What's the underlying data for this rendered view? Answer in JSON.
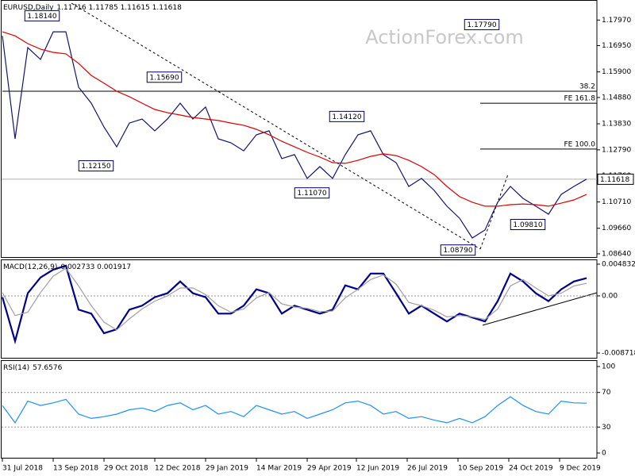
{
  "chart_data": [
    {
      "type": "line",
      "title": "EURUSD,Daily",
      "subtitle": "1.11716 1.11785 1.11615 1.11618",
      "watermark": "ActionForex.com",
      "x": [
        0,
        8,
        16,
        24,
        32,
        40,
        48,
        56,
        64,
        72,
        80,
        88,
        96,
        104,
        112,
        120,
        128,
        136,
        144,
        152,
        160,
        168,
        176,
        184,
        192,
        200,
        208,
        216,
        224,
        232,
        240,
        248,
        256,
        264,
        272,
        280,
        288,
        296,
        304,
        312,
        320,
        328,
        336,
        344,
        352,
        360,
        368
      ],
      "xlim": [
        0,
        374
      ],
      "xticks": [
        {
          "value": 0,
          "label": "31 Jul 2018"
        },
        {
          "value": 32,
          "label": "13 Sep 2018"
        },
        {
          "value": 64,
          "label": "29 Oct 2018"
        },
        {
          "value": 96,
          "label": "12 Dec 2018"
        },
        {
          "value": 128,
          "label": "29 Jan 2019"
        },
        {
          "value": 160,
          "label": "14 Mar 2019"
        },
        {
          "value": 192,
          "label": "29 Apr 2019"
        },
        {
          "value": 223,
          "label": "12 Jun 2019"
        },
        {
          "value": 255,
          "label": "26 Jul 2019"
        },
        {
          "value": 287,
          "label": "10 Sep 2019"
        },
        {
          "value": 319,
          "label": "24 Oct 2019"
        },
        {
          "value": 351,
          "label": "9 Dec 2019"
        }
      ],
      "ylim": [
        1.0848,
        1.1877
      ],
      "yticks": [
        {
          "value": 1.1797,
          "label": "1.17970"
        },
        {
          "value": 1.1695,
          "label": "1.16950"
        },
        {
          "value": 1.159,
          "label": "1.15900"
        },
        {
          "value": 1.1488,
          "label": "1.14880"
        },
        {
          "value": 1.1383,
          "label": "1.13830"
        },
        {
          "value": 1.1279,
          "label": "1.12790"
        },
        {
          "value": 1.1176,
          "label": "1.11760"
        },
        {
          "value": 1.1071,
          "label": "1.10710"
        },
        {
          "value": 1.0966,
          "label": "1.09660"
        },
        {
          "value": 1.0864,
          "label": "1.08640"
        }
      ],
      "current": 1.11618,
      "series": [
        {
          "color": "#14146e",
          "values": [
            1.1734,
            1.1323,
            1.1687,
            1.164,
            1.175,
            1.175,
            1.1529,
            1.1465,
            1.137,
            1.1291,
            1.1386,
            1.1402,
            1.1355,
            1.1402,
            1.1465,
            1.1402,
            1.145,
            1.1323,
            1.1307,
            1.1275,
            1.1339,
            1.1355,
            1.1244,
            1.126,
            1.1165,
            1.1212,
            1.1165,
            1.126,
            1.1339,
            1.1355,
            1.126,
            1.1228,
            1.1133,
            1.1165,
            1.1117,
            1.1054,
            1.1006,
            1.0927,
            1.0959,
            1.107,
            1.1133,
            1.1085,
            1.1054,
            1.1022,
            1.1101,
            1.1133,
            1.1162
          ]
        },
        {
          "color": "#e00000",
          "values": [
            1.175,
            1.1734,
            1.1703,
            1.1681,
            1.1668,
            1.1662,
            1.1624,
            1.1576,
            1.1545,
            1.1513,
            1.1491,
            1.1465,
            1.144,
            1.1427,
            1.1418,
            1.1408,
            1.1402,
            1.1396,
            1.1386,
            1.1377,
            1.1361,
            1.1339,
            1.1313,
            1.1291,
            1.1269,
            1.125,
            1.1228,
            1.1225,
            1.1237,
            1.1253,
            1.1263,
            1.1256,
            1.1237,
            1.1212,
            1.118,
            1.1133,
            1.1092,
            1.107,
            1.1054,
            1.1054,
            1.106,
            1.1063,
            1.106,
            1.1054,
            1.1066,
            1.1079,
            1.1101
          ]
        }
      ],
      "levels": [
        {
          "label": "38.2",
          "value": 1.1513,
          "x": 0
        },
        {
          "label": "FE 161.8",
          "value": 1.1465,
          "x": 301
        },
        {
          "label": "FE 100.0",
          "value": 1.1282,
          "x": 301
        }
      ],
      "annotations": [
        {
          "x": 25,
          "value": 1.1814,
          "label": "1.18140"
        },
        {
          "x": 102,
          "value": 1.1569,
          "label": "1.15690"
        },
        {
          "x": 59,
          "value": 1.1215,
          "label": "1.12150"
        },
        {
          "x": 195,
          "value": 1.1107,
          "label": "1.11070"
        },
        {
          "x": 217,
          "value": 1.1412,
          "label": "1.14120"
        },
        {
          "x": 302,
          "value": 1.1779,
          "label": "1.17790"
        },
        {
          "x": 331,
          "value": 1.0981,
          "label": "1.09810"
        },
        {
          "x": 287,
          "value": 1.0879,
          "label": "1.08790"
        }
      ]
    },
    {
      "type": "line",
      "title": "MACD(12,26,9)",
      "subtitle": "0.002733 0.001917",
      "grid": true,
      "ylim": [
        -0.008718,
        0.004832
      ],
      "yticks": [
        -0.008718,
        {
          "value": 0,
          "label": "0.00"
        },
        0.004832
      ],
      "series": [
        {
          "color": "#00008b",
          "values": [
            -0.0002,
            -0.0069,
            0.0004,
            0.0028,
            0.004,
            0.0046,
            -0.0021,
            -0.0027,
            -0.0057,
            -0.0051,
            -0.0021,
            -0.0015,
            -0.0002,
            0.0004,
            0.0022,
            0.0004,
            -0.0002,
            -0.0027,
            -0.0027,
            -0.0015,
            0.001,
            0.0004,
            -0.0027,
            -0.0015,
            -0.0021,
            -0.0027,
            -0.0021,
            0.0016,
            0.001,
            0.0034,
            0.0034,
            0.0004,
            -0.0027,
            -0.0015,
            -0.0027,
            -0.0039,
            -0.0027,
            -0.0033,
            -0.0039,
            -0.0008,
            0.0034,
            0.0022,
            0.0004,
            -0.0008,
            0.001,
            0.0022,
            0.0027
          ]
        },
        {
          "color": "#a0a0a0",
          "values": [
            0.0005,
            -0.003,
            -0.0025,
            0.0005,
            0.003,
            0.0042,
            0.0015,
            -0.0015,
            -0.004,
            -0.0052,
            -0.0035,
            -0.002,
            -0.0008,
            0.0,
            0.0012,
            0.0012,
            0.0002,
            -0.0015,
            -0.0025,
            -0.002,
            -0.0003,
            0.0005,
            -0.0012,
            -0.0017,
            -0.0019,
            -0.0024,
            -0.0023,
            -0.0003,
            0.001,
            0.0025,
            0.0032,
            0.0018,
            -0.001,
            -0.0015,
            -0.0022,
            -0.0032,
            -0.003,
            -0.0032,
            -0.0036,
            -0.002,
            0.0015,
            0.0025,
            0.0012,
            0.0,
            0.0004,
            0.0015,
            0.0019
          ]
        }
      ]
    },
    {
      "type": "line",
      "title": "RSI(14)",
      "subtitle": "57.6576",
      "grid": true,
      "ylim": [
        0,
        100
      ],
      "yticks": [
        0,
        30,
        70,
        100
      ],
      "series": [
        {
          "color": "#1e90ff",
          "values": [
            55,
            35,
            60,
            55,
            58,
            62,
            45,
            40,
            42,
            45,
            50,
            52,
            48,
            55,
            58,
            50,
            55,
            45,
            48,
            42,
            55,
            50,
            45,
            48,
            40,
            45,
            50,
            58,
            60,
            55,
            45,
            48,
            40,
            42,
            38,
            35,
            40,
            35,
            42,
            55,
            65,
            55,
            48,
            45,
            60,
            58,
            57.6576
          ]
        }
      ]
    }
  ]
}
